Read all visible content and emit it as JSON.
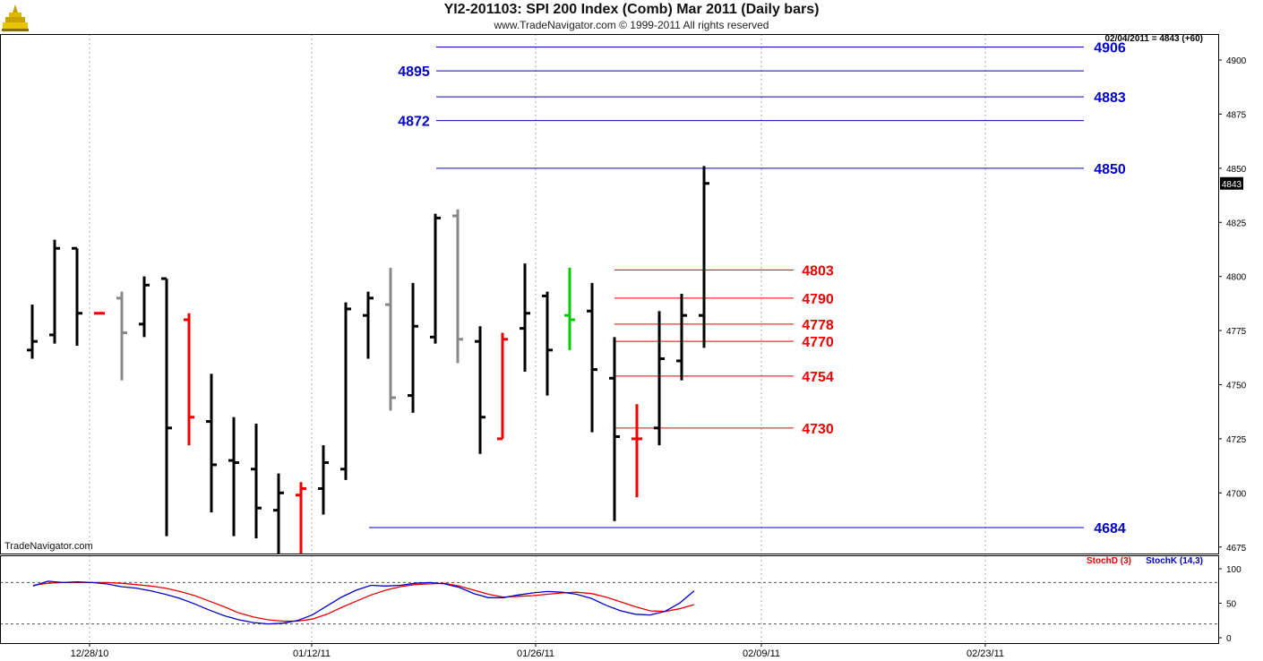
{
  "header": {
    "title": "YI2-201103:  SPI 200 Index (Comb) Mar 2011  (Daily bars)",
    "subtitle": "www.TradeNavigator.com © 1999-2011 All rights reserved",
    "readout": "02/04/2011 = 4843 (+60)",
    "last_price_tag": "4843",
    "watermark": "TradeNavigator.com"
  },
  "colors": {
    "up": "#000000",
    "down": "#ee0000",
    "inside": "#888888",
    "special": "#00cc00",
    "level_blue": "#0000cc",
    "level_red": "#ee0000",
    "grid": "#aaaaaa"
  },
  "chart_data": [
    {
      "type": "ohlc",
      "title": "YI2-201103:  SPI 200 Index (Comb) Mar 2011  (Daily bars)",
      "ylim": [
        4672,
        4912
      ],
      "y_ticks": [
        4675,
        4700,
        4725,
        4750,
        4775,
        4800,
        4825,
        4850,
        4875,
        4900
      ],
      "x_ticks": [
        "12/28/10",
        "01/12/11",
        "01/26/11",
        "02/09/11",
        "02/23/11"
      ],
      "bars": [
        {
          "i": 0,
          "o": 4766,
          "h": 4787,
          "l": 4762,
          "c": 4770,
          "col": "up"
        },
        {
          "i": 1,
          "o": 4773,
          "h": 4817,
          "l": 4769,
          "c": 4813,
          "col": "up"
        },
        {
          "i": 2,
          "o": 4813,
          "h": 4813,
          "l": 4768,
          "c": 4783,
          "col": "up"
        },
        {
          "i": 3,
          "o": 4783,
          "h": 4783,
          "l": 4783,
          "c": 4783,
          "col": "down"
        },
        {
          "i": 4,
          "o": 4790,
          "h": 4793,
          "l": 4752,
          "c": 4774,
          "col": "inside"
        },
        {
          "i": 5,
          "o": 4778,
          "h": 4800,
          "l": 4772,
          "c": 4796,
          "col": "up"
        },
        {
          "i": 6,
          "o": 4799,
          "h": 4799,
          "l": 4680,
          "c": 4730,
          "col": "up"
        },
        {
          "i": 7,
          "o": 4780,
          "h": 4783,
          "l": 4722,
          "c": 4735,
          "col": "down"
        },
        {
          "i": 8,
          "o": 4733,
          "h": 4755,
          "l": 4691,
          "c": 4713,
          "col": "up"
        },
        {
          "i": 9,
          "o": 4715,
          "h": 4735,
          "l": 4680,
          "c": 4714,
          "col": "up"
        },
        {
          "i": 10,
          "o": 4711,
          "h": 4732,
          "l": 4679,
          "c": 4693,
          "col": "up"
        },
        {
          "i": 11,
          "o": 4692,
          "h": 4709,
          "l": 4672,
          "c": 4700,
          "col": "up"
        },
        {
          "i": 12,
          "o": 4699,
          "h": 4705,
          "l": 4672,
          "c": 4702,
          "col": "down"
        },
        {
          "i": 13,
          "o": 4702,
          "h": 4722,
          "l": 4690,
          "c": 4714,
          "col": "up"
        },
        {
          "i": 14,
          "o": 4711,
          "h": 4788,
          "l": 4706,
          "c": 4785,
          "col": "up"
        },
        {
          "i": 15,
          "o": 4782,
          "h": 4793,
          "l": 4762,
          "c": 4790,
          "col": "up"
        },
        {
          "i": 16,
          "o": 4787,
          "h": 4804,
          "l": 4738,
          "c": 4744,
          "col": "inside"
        },
        {
          "i": 17,
          "o": 4745,
          "h": 4797,
          "l": 4737,
          "c": 4777,
          "col": "up"
        },
        {
          "i": 18,
          "o": 4772,
          "h": 4829,
          "l": 4769,
          "c": 4827,
          "col": "up"
        },
        {
          "i": 19,
          "o": 4828,
          "h": 4831,
          "l": 4760,
          "c": 4771,
          "col": "inside"
        },
        {
          "i": 20,
          "o": 4770,
          "h": 4777,
          "l": 4718,
          "c": 4735,
          "col": "up"
        },
        {
          "i": 21,
          "o": 4725,
          "h": 4774,
          "l": 4725,
          "c": 4771,
          "col": "down"
        },
        {
          "i": 22,
          "o": 4776,
          "h": 4806,
          "l": 4756,
          "c": 4783,
          "col": "up"
        },
        {
          "i": 23,
          "o": 4791,
          "h": 4793,
          "l": 4745,
          "c": 4766,
          "col": "up"
        },
        {
          "i": 24,
          "o": 4782,
          "h": 4804,
          "l": 4766,
          "c": 4780,
          "col": "special"
        },
        {
          "i": 25,
          "o": 4784,
          "h": 4797,
          "l": 4728,
          "c": 4757,
          "col": "up"
        },
        {
          "i": 26,
          "o": 4753,
          "h": 4772,
          "l": 4687,
          "c": 4726,
          "col": "up"
        },
        {
          "i": 27,
          "o": 4725,
          "h": 4741,
          "l": 4698,
          "c": 4725,
          "col": "down"
        },
        {
          "i": 28,
          "o": 4730,
          "h": 4784,
          "l": 4722,
          "c": 4762,
          "col": "up"
        },
        {
          "i": 29,
          "o": 4761,
          "h": 4792,
          "l": 4752,
          "c": 4782,
          "col": "up"
        },
        {
          "i": 30,
          "o": 4782,
          "h": 4851,
          "l": 4767,
          "c": 4843,
          "col": "up"
        }
      ],
      "levels_blue": [
        4906,
        4895,
        4883,
        4872,
        4850,
        4684
      ],
      "levels_red": [
        4803,
        4790,
        4778,
        4770,
        4754,
        4730
      ]
    },
    {
      "type": "line",
      "title": "",
      "ylim": [
        0,
        100
      ],
      "y_ticks": [
        0,
        50,
        100
      ],
      "bands": [
        80,
        20
      ],
      "series": [
        {
          "name": "StochD (3)",
          "color": "#ee0000",
          "values": [
            76,
            79,
            80,
            80,
            80,
            80,
            79,
            77,
            75,
            72,
            67,
            61,
            53,
            45,
            36,
            30,
            26,
            24,
            24,
            27,
            34,
            44,
            53,
            62,
            69,
            74,
            77,
            78,
            79,
            75,
            69,
            63,
            59,
            60,
            61,
            63,
            65,
            66,
            64,
            59,
            52,
            45,
            39,
            38,
            42,
            48
          ]
        },
        {
          "name": "StochK (14,3)",
          "color": "#0000cc",
          "values": [
            75,
            82,
            80,
            81,
            80,
            78,
            74,
            72,
            68,
            63,
            57,
            49,
            40,
            32,
            26,
            22,
            20,
            21,
            25,
            33,
            46,
            59,
            69,
            76,
            75,
            76,
            79,
            80,
            78,
            73,
            64,
            58,
            58,
            62,
            65,
            67,
            66,
            63,
            57,
            47,
            39,
            34,
            33,
            38,
            50,
            68
          ]
        }
      ]
    }
  ]
}
